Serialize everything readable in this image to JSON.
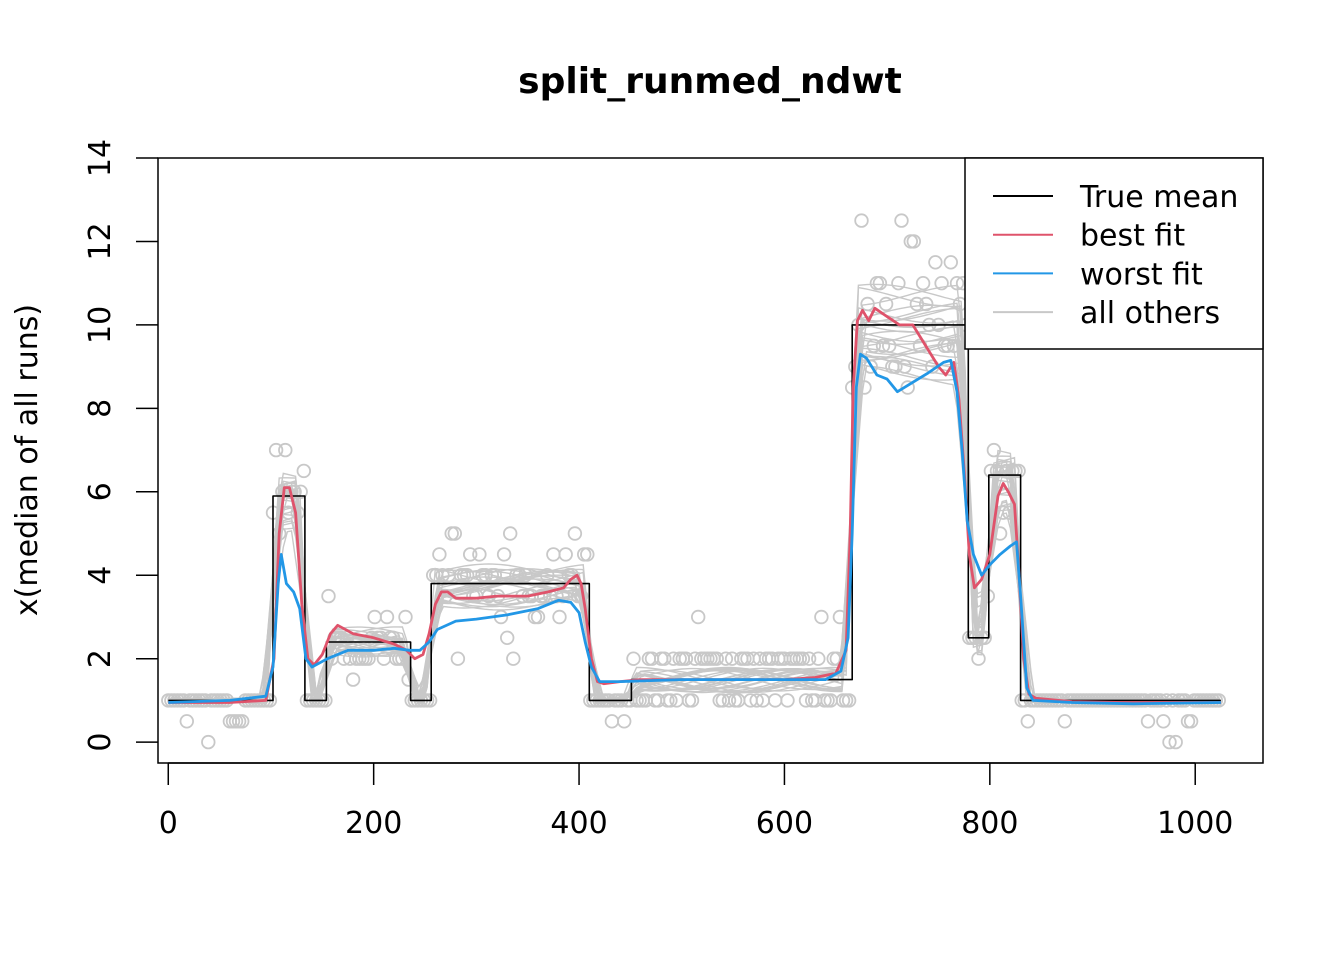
{
  "chart_data": {
    "type": "line",
    "title": "split_runmed_ndwt",
    "xlabel": "",
    "ylabel": "x(median of all runs)",
    "xlim": [
      -10,
      1066
    ],
    "ylim": [
      -0.5,
      14
    ],
    "x_ticks": [
      0,
      200,
      400,
      600,
      800,
      1000
    ],
    "y_ticks": [
      0,
      2,
      4,
      6,
      8,
      10,
      12,
      14
    ],
    "grid": false,
    "legend_position": "top-right",
    "colors": {
      "true_mean": "#000000",
      "best_fit": "#DF536B",
      "worst_fit": "#2297E6",
      "all_others": "#C8C8C8"
    },
    "legend": [
      {
        "label": "True mean",
        "color": "#000000"
      },
      {
        "label": "best fit",
        "color": "#DF536B"
      },
      {
        "label": "worst fit",
        "color": "#2297E6"
      },
      {
        "label": "all others",
        "color": "#C8C8C8"
      }
    ],
    "series": [
      {
        "name": "True mean",
        "step": true,
        "points": [
          [
            0,
            1
          ],
          [
            102,
            1
          ],
          [
            102,
            5.9
          ],
          [
            133,
            5.9
          ],
          [
            133,
            1
          ],
          [
            154,
            1
          ],
          [
            154,
            2.4
          ],
          [
            236,
            2.4
          ],
          [
            236,
            1
          ],
          [
            256,
            1
          ],
          [
            256,
            3.8
          ],
          [
            410,
            3.8
          ],
          [
            410,
            1
          ],
          [
            451,
            1
          ],
          [
            451,
            1.5
          ],
          [
            666,
            1.5
          ],
          [
            666,
            10
          ],
          [
            779,
            10
          ],
          [
            779,
            2.5
          ],
          [
            799,
            2.5
          ],
          [
            799,
            6.4
          ],
          [
            830,
            6.4
          ],
          [
            830,
            1
          ],
          [
            1025,
            1
          ]
        ]
      },
      {
        "name": "best fit",
        "points": [
          [
            0,
            0.95
          ],
          [
            60,
            0.95
          ],
          [
            95,
            1.0
          ],
          [
            103,
            2.0
          ],
          [
            108,
            5.0
          ],
          [
            113,
            6.1
          ],
          [
            118,
            6.1
          ],
          [
            124,
            5.5
          ],
          [
            130,
            3.3
          ],
          [
            136,
            2.0
          ],
          [
            142,
            1.85
          ],
          [
            150,
            2.1
          ],
          [
            158,
            2.6
          ],
          [
            165,
            2.8
          ],
          [
            180,
            2.6
          ],
          [
            200,
            2.5
          ],
          [
            220,
            2.35
          ],
          [
            232,
            2.2
          ],
          [
            240,
            2.0
          ],
          [
            248,
            2.1
          ],
          [
            254,
            2.6
          ],
          [
            260,
            3.3
          ],
          [
            266,
            3.6
          ],
          [
            272,
            3.6
          ],
          [
            280,
            3.45
          ],
          [
            300,
            3.45
          ],
          [
            320,
            3.5
          ],
          [
            350,
            3.5
          ],
          [
            370,
            3.6
          ],
          [
            385,
            3.7
          ],
          [
            392,
            3.9
          ],
          [
            398,
            4.0
          ],
          [
            402,
            3.8
          ],
          [
            406,
            3.2
          ],
          [
            412,
            2.0
          ],
          [
            418,
            1.45
          ],
          [
            424,
            1.4
          ],
          [
            440,
            1.45
          ],
          [
            460,
            1.5
          ],
          [
            500,
            1.5
          ],
          [
            550,
            1.5
          ],
          [
            600,
            1.5
          ],
          [
            630,
            1.55
          ],
          [
            650,
            1.65
          ],
          [
            660,
            2.2
          ],
          [
            664,
            5.0
          ],
          [
            667,
            8.5
          ],
          [
            671,
            10.1
          ],
          [
            676,
            10.35
          ],
          [
            682,
            10.1
          ],
          [
            688,
            10.4
          ],
          [
            700,
            10.2
          ],
          [
            712,
            10.0
          ],
          [
            725,
            10.0
          ],
          [
            740,
            9.4
          ],
          [
            750,
            9.0
          ],
          [
            757,
            8.8
          ],
          [
            765,
            9.1
          ],
          [
            770,
            8.2
          ],
          [
            775,
            6.5
          ],
          [
            780,
            4.5
          ],
          [
            785,
            3.7
          ],
          [
            792,
            3.9
          ],
          [
            800,
            4.5
          ],
          [
            808,
            5.9
          ],
          [
            813,
            6.2
          ],
          [
            818,
            6.0
          ],
          [
            824,
            5.7
          ],
          [
            828,
            4.2
          ],
          [
            833,
            2.0
          ],
          [
            838,
            1.15
          ],
          [
            845,
            1.05
          ],
          [
            880,
            0.97
          ],
          [
            930,
            0.95
          ],
          [
            1025,
            0.95
          ]
        ]
      },
      {
        "name": "worst fit",
        "points": [
          [
            0,
            0.95
          ],
          [
            60,
            1.0
          ],
          [
            95,
            1.1
          ],
          [
            102,
            1.8
          ],
          [
            107,
            3.8
          ],
          [
            110,
            4.5
          ],
          [
            115,
            3.8
          ],
          [
            122,
            3.6
          ],
          [
            128,
            3.2
          ],
          [
            134,
            2.0
          ],
          [
            140,
            1.8
          ],
          [
            155,
            2.0
          ],
          [
            175,
            2.2
          ],
          [
            200,
            2.2
          ],
          [
            220,
            2.25
          ],
          [
            235,
            2.2
          ],
          [
            245,
            2.2
          ],
          [
            254,
            2.4
          ],
          [
            262,
            2.7
          ],
          [
            280,
            2.9
          ],
          [
            300,
            2.95
          ],
          [
            330,
            3.05
          ],
          [
            360,
            3.2
          ],
          [
            380,
            3.4
          ],
          [
            392,
            3.35
          ],
          [
            400,
            3.1
          ],
          [
            406,
            2.4
          ],
          [
            412,
            1.8
          ],
          [
            420,
            1.45
          ],
          [
            440,
            1.45
          ],
          [
            500,
            1.5
          ],
          [
            550,
            1.5
          ],
          [
            600,
            1.5
          ],
          [
            640,
            1.5
          ],
          [
            655,
            1.7
          ],
          [
            662,
            2.5
          ],
          [
            666,
            5.0
          ],
          [
            670,
            8.5
          ],
          [
            674,
            9.3
          ],
          [
            680,
            9.2
          ],
          [
            690,
            8.8
          ],
          [
            700,
            8.7
          ],
          [
            710,
            8.4
          ],
          [
            720,
            8.55
          ],
          [
            740,
            8.85
          ],
          [
            755,
            9.1
          ],
          [
            762,
            9.15
          ],
          [
            768,
            8.4
          ],
          [
            773,
            7.0
          ],
          [
            778,
            5.3
          ],
          [
            784,
            4.5
          ],
          [
            792,
            4.0
          ],
          [
            800,
            4.25
          ],
          [
            810,
            4.5
          ],
          [
            820,
            4.7
          ],
          [
            826,
            4.8
          ],
          [
            830,
            3.5
          ],
          [
            836,
            1.3
          ],
          [
            842,
            1.0
          ],
          [
            880,
            0.95
          ],
          [
            940,
            0.92
          ],
          [
            1025,
            0.95
          ]
        ]
      }
    ],
    "all_others_count": 25,
    "observations_count": 1025
  }
}
